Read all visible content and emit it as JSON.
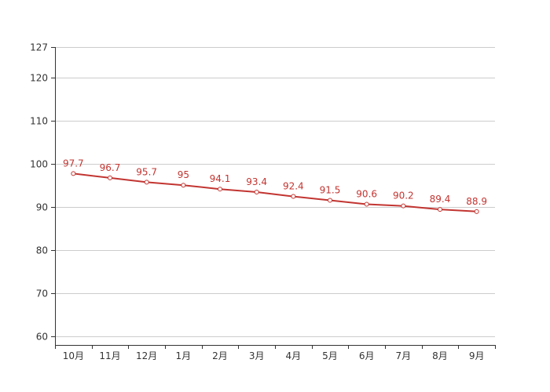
{
  "chart_data": {
    "type": "line",
    "categories": [
      "10月",
      "11月",
      "12月",
      "1月",
      "2月",
      "3月",
      "4月",
      "5月",
      "6月",
      "7月",
      "8月",
      "9月"
    ],
    "series": [
      {
        "values": [
          97.7,
          96.7,
          95.7,
          95,
          94.1,
          93.4,
          92.4,
          91.5,
          90.6,
          90.2,
          89.4,
          88.9
        ]
      }
    ],
    "data_labels": [
      "97.7",
      "96.7",
      "95.7",
      "95",
      "94.1",
      "93.4",
      "92.4",
      "91.5",
      "90.6",
      "90.2",
      "89.4",
      "88.9"
    ],
    "y_ticks": [
      60,
      70,
      80,
      90,
      100,
      110,
      120,
      127
    ],
    "ylim": [
      58,
      127
    ],
    "grid": true,
    "colors": {
      "series": "#c23531",
      "grid": "#cccccc",
      "axis": "#333333"
    }
  }
}
